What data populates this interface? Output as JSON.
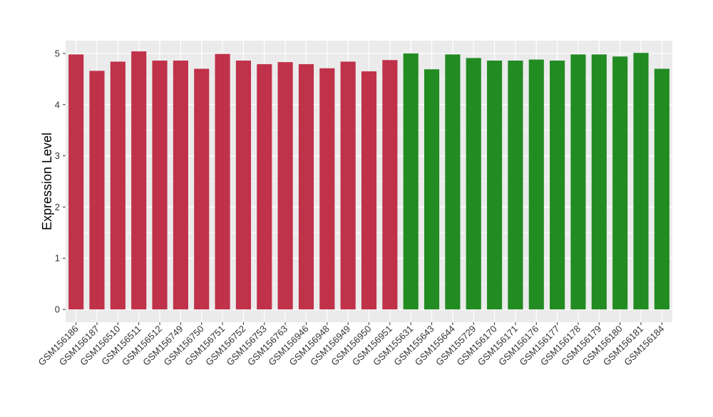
{
  "chart_data": {
    "type": "bar",
    "title": "",
    "xlabel": "",
    "ylabel": "Expression Level",
    "ylim": [
      -0.25,
      5.25
    ],
    "yticks": [
      0,
      1,
      2,
      3,
      4,
      5
    ],
    "grid": true,
    "legend": "none",
    "colors": {
      "group1": "#C0314A",
      "group2": "#228B22",
      "panel_background": "#EBEBEB",
      "gridline": "#FFFFFF"
    },
    "categories": [
      "GSM156186",
      "GSM156187",
      "GSM156510",
      "GSM156511",
      "GSM156512",
      "GSM156749",
      "GSM156750",
      "GSM156751",
      "GSM156752",
      "GSM156753",
      "GSM156763",
      "GSM156946",
      "GSM156948",
      "GSM156949",
      "GSM156950",
      "GSM156951",
      "GSM155631",
      "GSM155643",
      "GSM155644",
      "GSM155729",
      "GSM156170",
      "GSM156171",
      "GSM156176",
      "GSM156177",
      "GSM156178",
      "GSM156179",
      "GSM156180",
      "GSM156181",
      "GSM156184"
    ],
    "values": [
      4.98,
      4.66,
      4.84,
      5.04,
      4.86,
      4.86,
      4.7,
      4.99,
      4.86,
      4.79,
      4.83,
      4.79,
      4.71,
      4.84,
      4.65,
      4.87,
      5.0,
      4.69,
      4.98,
      4.91,
      4.86,
      4.86,
      4.88,
      4.86,
      4.98,
      4.98,
      4.94,
      5.01,
      4.7
    ],
    "groups": [
      "group1",
      "group1",
      "group1",
      "group1",
      "group1",
      "group1",
      "group1",
      "group1",
      "group1",
      "group1",
      "group1",
      "group1",
      "group1",
      "group1",
      "group1",
      "group1",
      "group2",
      "group2",
      "group2",
      "group2",
      "group2",
      "group2",
      "group2",
      "group2",
      "group2",
      "group2",
      "group2",
      "group2",
      "group2"
    ]
  }
}
